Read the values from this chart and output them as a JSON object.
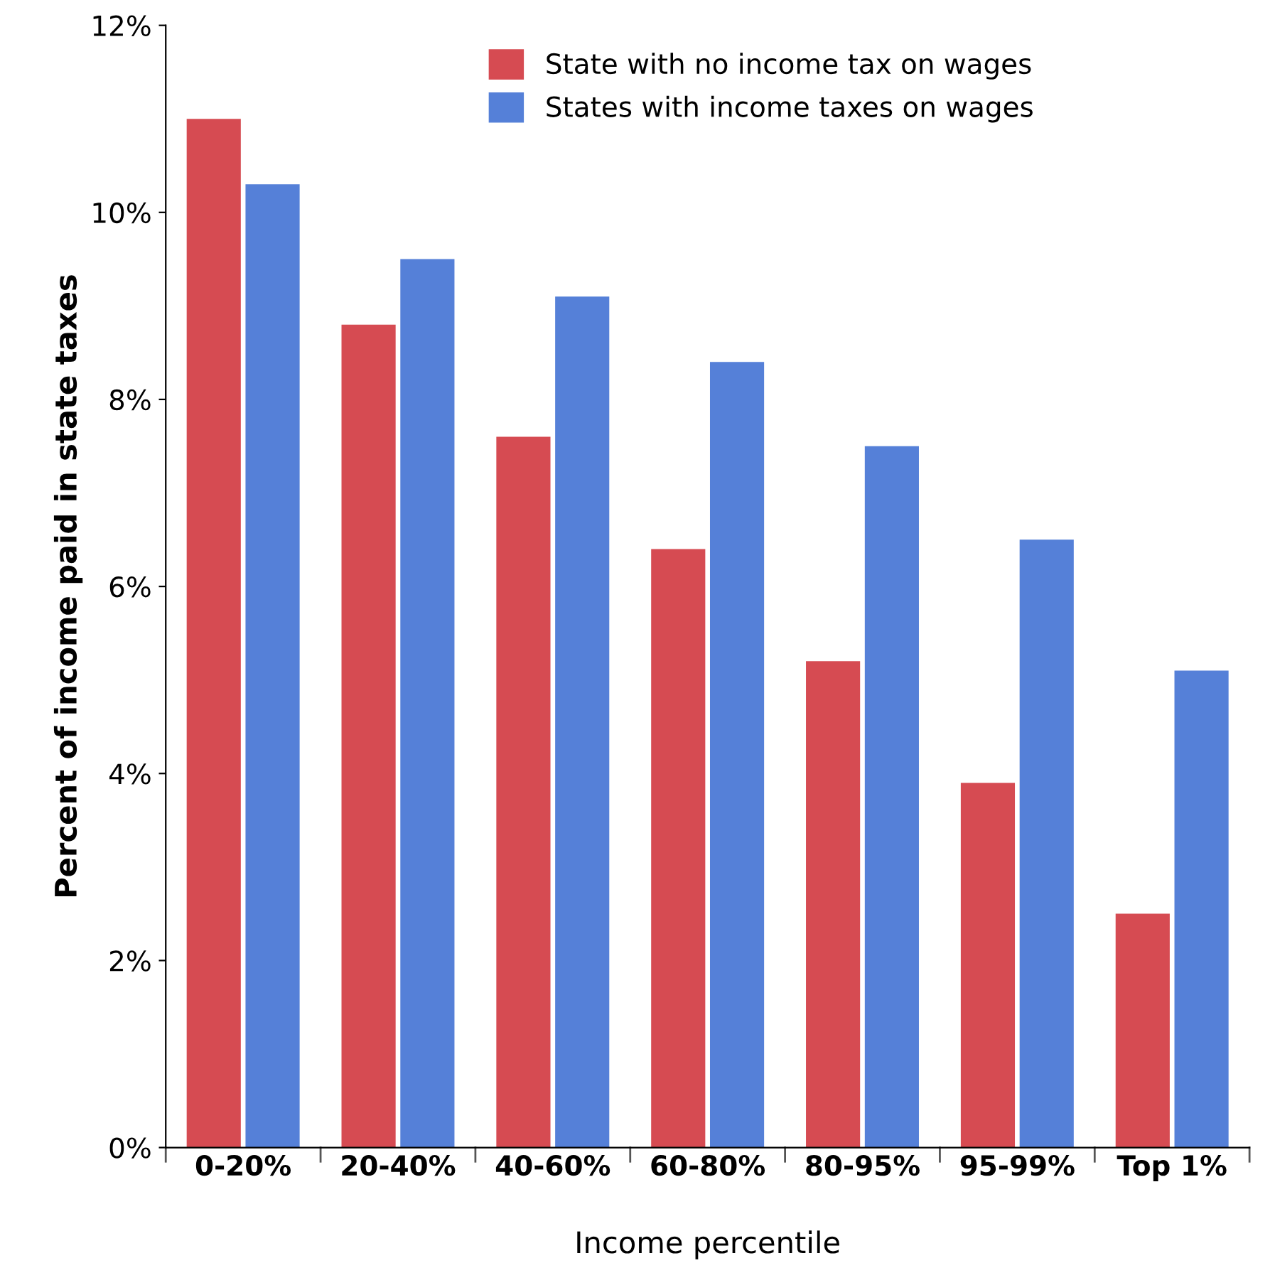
{
  "chart_data": {
    "type": "bar",
    "xlabel": "Income percentile",
    "ylabel": "Percent of income paid in state taxes",
    "categories": [
      "0-20%",
      "20-40%",
      "40-60%",
      "60-80%",
      "80-95%",
      "95-99%",
      "Top 1%"
    ],
    "series": [
      {
        "name": "State with no income tax on wages",
        "color": "#d64b52",
        "values": [
          11.0,
          8.8,
          7.6,
          6.4,
          5.2,
          3.9,
          2.5
        ]
      },
      {
        "name": "States with income taxes on wages",
        "color": "#5580d8",
        "values": [
          10.3,
          9.5,
          9.1,
          8.4,
          7.5,
          6.5,
          5.1
        ]
      }
    ],
    "ylim": [
      0,
      12
    ],
    "yticks": [
      {
        "value": 0,
        "label": "0%"
      },
      {
        "value": 2,
        "label": "2%"
      },
      {
        "value": 4,
        "label": "4%"
      },
      {
        "value": 6,
        "label": "6%"
      },
      {
        "value": 8,
        "label": "8%"
      },
      {
        "value": 10,
        "label": "10%"
      },
      {
        "value": 12,
        "label": "12%"
      }
    ],
    "grid": false,
    "legend": "top"
  }
}
